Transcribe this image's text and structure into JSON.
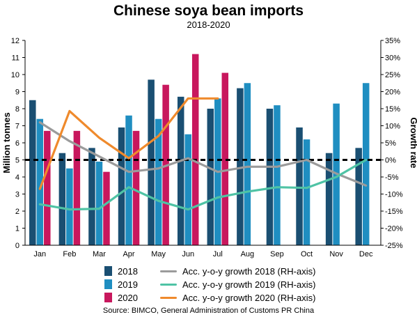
{
  "chart_data": {
    "type": "bar+line",
    "title": "Chinese soya bean imports",
    "subtitle": "2018-2020",
    "categories": [
      "Jan",
      "Feb",
      "Mar",
      "Apr",
      "May",
      "Jun",
      "Jul",
      "Aug",
      "Sep",
      "Oct",
      "Nov",
      "Dec"
    ],
    "ylabel": "Million tonnes",
    "y2label": "Growth rate",
    "ylim": [
      0,
      12
    ],
    "y2lim": [
      -25,
      35
    ],
    "y_ticks": [
      "0",
      "1",
      "2",
      "3",
      "4",
      "5",
      "6",
      "7",
      "8",
      "9",
      "10",
      "11",
      "12"
    ],
    "y2_ticks": [
      "-25%",
      "-20%",
      "-15%",
      "-10%",
      "-5%",
      "0%",
      "5%",
      "10%",
      "15%",
      "20%",
      "25%",
      "30%",
      "35%"
    ],
    "bar_series": [
      {
        "name": "2018",
        "color": "#1a4f72",
        "values": [
          8.5,
          5.4,
          5.7,
          6.9,
          9.7,
          8.7,
          8.0,
          9.2,
          8.0,
          6.9,
          5.4,
          5.7
        ]
      },
      {
        "name": "2019",
        "color": "#1f8ec1",
        "values": [
          7.4,
          4.5,
          4.9,
          7.6,
          7.4,
          6.5,
          8.6,
          9.5,
          8.2,
          6.2,
          8.3,
          9.5
        ]
      },
      {
        "name": "2020",
        "color": "#c8175d",
        "values": [
          6.7,
          6.7,
          4.3,
          6.7,
          9.4,
          11.2,
          10.1,
          null,
          null,
          null,
          null,
          null
        ]
      }
    ],
    "line_series": [
      {
        "name": "Acc. y-o-y growth 2018 (RH-axis)",
        "color": "#9b9b9b",
        "values": [
          11,
          5.5,
          1,
          -3.5,
          -2.5,
          0.5,
          -3.5,
          -2,
          -2,
          0,
          -4,
          -7.5
        ]
      },
      {
        "name": "Acc. y-o-y growth 2019 (RH-axis)",
        "color": "#4fc3a5",
        "values": [
          -13,
          -14.5,
          -14.3,
          -8,
          -12,
          -14.5,
          -11,
          -9.3,
          -8,
          -8.2,
          -5,
          0
        ]
      },
      {
        "name": "Acc. y-o-y growth 2020 (RH-axis)",
        "color": "#ef8a2c",
        "values": [
          -8.5,
          14.3,
          6.5,
          0.5,
          7,
          18,
          18,
          null,
          null,
          null,
          null,
          null
        ]
      }
    ],
    "reference_line": {
      "axis": "y2",
      "value": 0,
      "style": "dashed"
    },
    "legend_position": "bottom",
    "grid": false
  },
  "source": "Source: BIMCO, General Administration of Customs PR China"
}
